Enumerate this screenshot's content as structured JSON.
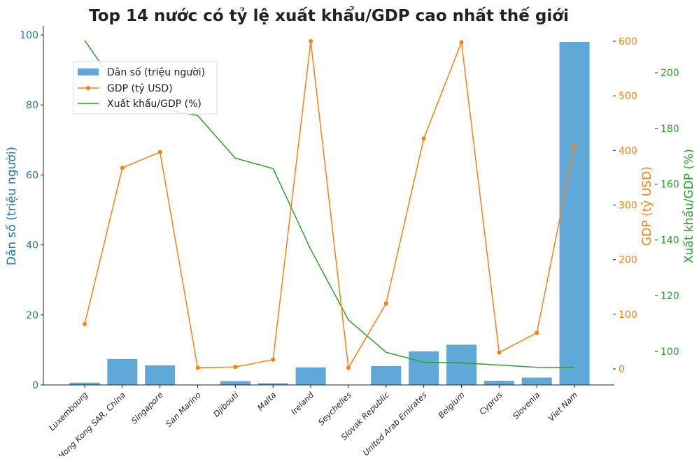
{
  "chart_data": {
    "type": "bar+line",
    "title": "Top 14 nước có tỷ lệ xuất khẩu/GDP cao nhất thế giới",
    "categories": [
      "Luxembourg",
      "Hong Kong SAR, China",
      "Singapore",
      "San Marino",
      "Djibouti",
      "Malta",
      "Ireland",
      "Seychelles",
      "Slovak Republic",
      "United Arab Emirates",
      "Belgium",
      "Cyprus",
      "Slovenia",
      "Viet Nam"
    ],
    "highlight_category": "Viet Nam",
    "highlight_color": "#d62728",
    "series": [
      {
        "name": "Dân số (triệu người)",
        "type": "bar",
        "axis": "left",
        "color": "#5fa8d8",
        "values": [
          0.66,
          7.4,
          5.6,
          0.03,
          1.1,
          0.5,
          5.0,
          0.1,
          5.4,
          9.6,
          11.5,
          1.2,
          2.1,
          98
        ]
      },
      {
        "name": "GDP (tỷ USD)",
        "type": "line",
        "marker": "circle",
        "axis": "right1",
        "color": "#ff7f0e",
        "values": [
          82,
          368,
          397,
          2,
          3.5,
          17,
          600,
          2,
          120,
          422,
          598,
          30,
          66,
          409
        ]
      },
      {
        "name": "Xuất khẩu/GDP (%)",
        "type": "line",
        "axis": "right2",
        "color": "#2ca02c",
        "values": [
          211.6,
          192,
          187,
          184.6,
          169.3,
          165.6,
          136.6,
          111.3,
          99.7,
          96.1,
          95.9,
          95.1,
          94.3,
          94.2
        ]
      }
    ],
    "axes": {
      "left": {
        "label": "Dân số (triệu người)",
        "color": "#1f77b4",
        "ticks": [
          0,
          20,
          40,
          60,
          80,
          100
        ],
        "range": [
          0,
          100
        ]
      },
      "right1": {
        "label": "GDP (tỷ USD)",
        "color": "#ff7f0e",
        "ticks": [
          0,
          100,
          200,
          300,
          400,
          500,
          600
        ],
        "range": [
          -30,
          655
        ]
      },
      "right2": {
        "label": "Xuất khẩu/GDP (%)",
        "color": "#2ca02c",
        "ticks": [
          100,
          120,
          140,
          160,
          180,
          200
        ],
        "range": [
          88,
          212
        ]
      }
    },
    "legend": {
      "placement": "upper-left"
    },
    "grid": false
  }
}
